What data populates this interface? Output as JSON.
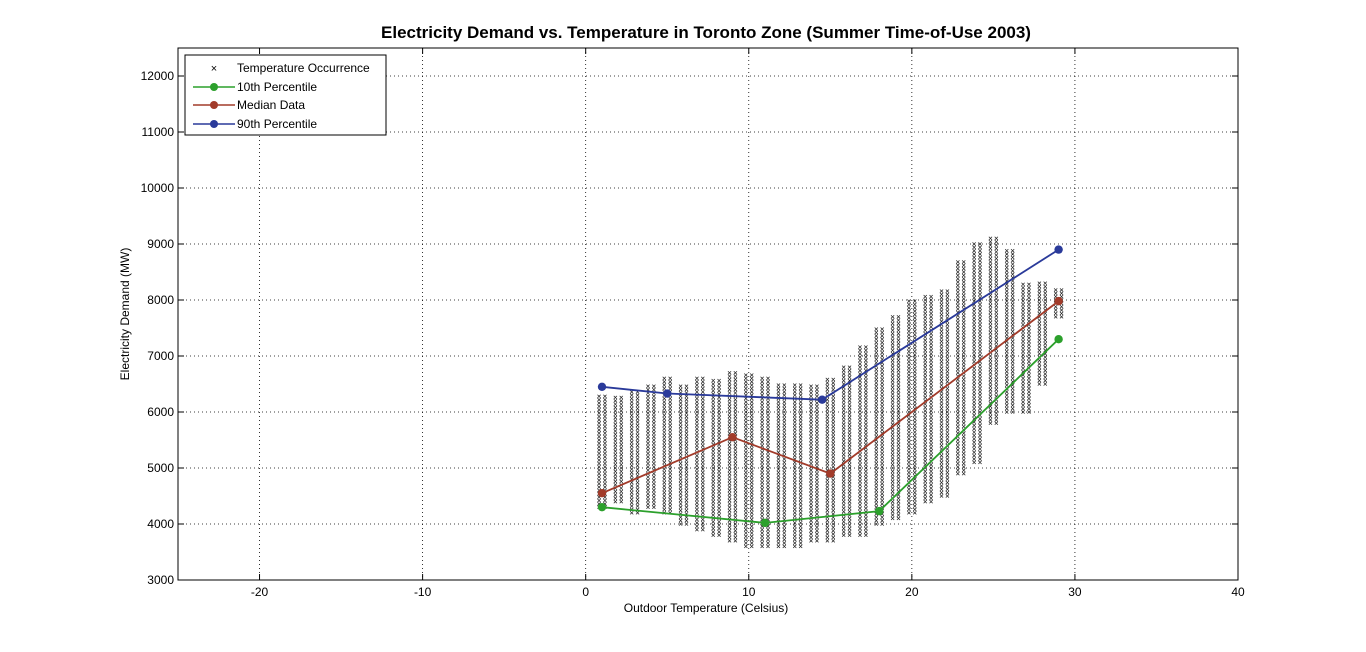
{
  "chart_data": {
    "type": "scatter",
    "title": "Electricity Demand vs. Temperature in Toronto Zone (Summer Time-of-Use 2003)",
    "xlabel": "Outdoor Temperature (Celsius)",
    "ylabel": "Electricity Demand (MW)",
    "xlim": [
      -25,
      40
    ],
    "ylim": [
      3000,
      12500
    ],
    "xticks": [
      -20,
      -10,
      0,
      10,
      20,
      30,
      40
    ],
    "yticks": [
      3000,
      4000,
      5000,
      6000,
      7000,
      8000,
      9000,
      10000,
      11000,
      12000
    ],
    "xtick_labels": [
      "-20",
      "-10",
      "0",
      "10",
      "20",
      "30",
      "40"
    ],
    "ytick_labels": [
      "3000",
      "4000",
      "5000",
      "6000",
      "7000",
      "8000",
      "9000",
      "10000",
      "11000",
      "12000"
    ],
    "grid": true,
    "legend_position": "top-left",
    "occurrence_ranges": [
      {
        "x": 1,
        "min": 4300,
        "max": 6300
      },
      {
        "x": 2,
        "min": 4400,
        "max": 6300
      },
      {
        "x": 3,
        "min": 4200,
        "max": 6400
      },
      {
        "x": 4,
        "min": 4300,
        "max": 6500
      },
      {
        "x": 5,
        "min": 4200,
        "max": 6600
      },
      {
        "x": 6,
        "min": 4000,
        "max": 6500
      },
      {
        "x": 7,
        "min": 3900,
        "max": 6600
      },
      {
        "x": 8,
        "min": 3800,
        "max": 6600
      },
      {
        "x": 9,
        "min": 3700,
        "max": 6700
      },
      {
        "x": 10,
        "min": 3600,
        "max": 6700
      },
      {
        "x": 11,
        "min": 3600,
        "max": 6600
      },
      {
        "x": 12,
        "min": 3600,
        "max": 6500
      },
      {
        "x": 13,
        "min": 3600,
        "max": 6500
      },
      {
        "x": 14,
        "min": 3700,
        "max": 6500
      },
      {
        "x": 15,
        "min": 3700,
        "max": 6600
      },
      {
        "x": 16,
        "min": 3800,
        "max": 6800
      },
      {
        "x": 17,
        "min": 3800,
        "max": 7200
      },
      {
        "x": 18,
        "min": 4000,
        "max": 7500
      },
      {
        "x": 19,
        "min": 4100,
        "max": 7700
      },
      {
        "x": 20,
        "min": 4200,
        "max": 8000
      },
      {
        "x": 21,
        "min": 4400,
        "max": 8100
      },
      {
        "x": 22,
        "min": 4500,
        "max": 8200
      },
      {
        "x": 23,
        "min": 4900,
        "max": 8700
      },
      {
        "x": 24,
        "min": 5100,
        "max": 9000
      },
      {
        "x": 25,
        "min": 5800,
        "max": 9100
      },
      {
        "x": 26,
        "min": 6000,
        "max": 8900
      },
      {
        "x": 27,
        "min": 6000,
        "max": 8300
      },
      {
        "x": 28,
        "min": 6500,
        "max": 8300
      },
      {
        "x": 29,
        "min": 7700,
        "max": 8200
      }
    ],
    "series": [
      {
        "name": "Temperature Occurrence",
        "marker": "x",
        "color": "#000000"
      },
      {
        "name": "10th Percentile",
        "color": "#2ca02c",
        "x": [
          1,
          11,
          18,
          29
        ],
        "y": [
          4300,
          4020,
          4230,
          7300
        ]
      },
      {
        "name": "Median Data",
        "color": "#a23b2a",
        "x": [
          1,
          9,
          15,
          29
        ],
        "y": [
          4550,
          5550,
          4900,
          7980
        ]
      },
      {
        "name": "90th Percentile",
        "color": "#2a3a9a",
        "x": [
          1,
          5,
          14.5,
          29
        ],
        "y": [
          6450,
          6330,
          6220,
          8900
        ]
      }
    ]
  }
}
